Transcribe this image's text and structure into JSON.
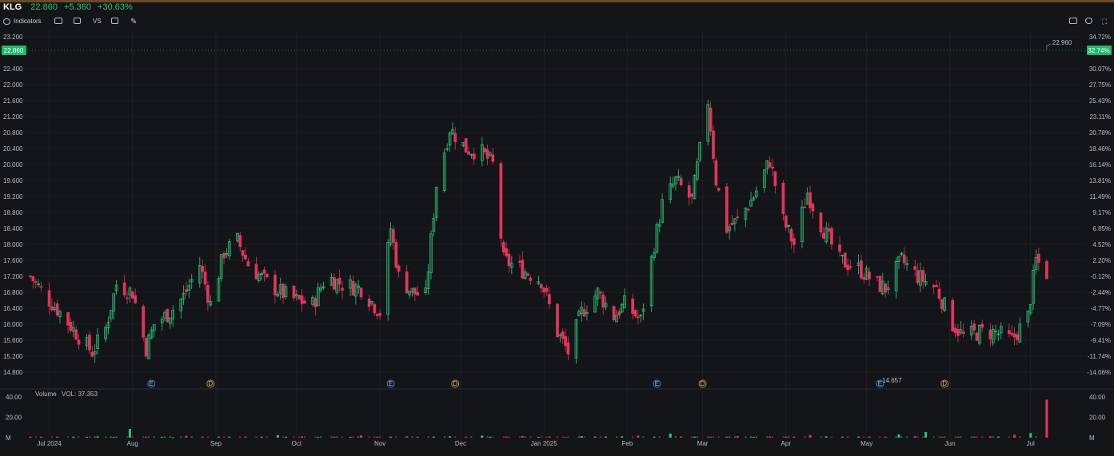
{
  "ticker": {
    "symbol": "KLG",
    "price": "22.860",
    "change": "+5.360",
    "change_pct": "+30.63%"
  },
  "toolbar": {
    "indicators": "Indicators",
    "vs": "VS"
  },
  "colors": {
    "up": "#2fc77a",
    "down": "#e4345b",
    "grid": "#23262d",
    "price_line": "#1fb86a",
    "earnings": "#3e7be0",
    "dividend": "#c88a1e"
  },
  "chart_data": {
    "type": "candlestick",
    "price_axis": [
      "23.200",
      "22.400",
      "22.000",
      "21.600",
      "21.200",
      "20.800",
      "20.400",
      "20.000",
      "19.600",
      "19.200",
      "18.800",
      "18.400",
      "18.000",
      "17.600",
      "17.200",
      "16.800",
      "16.400",
      "16.000",
      "15.600",
      "15.200",
      "14.800"
    ],
    "pct_axis": [
      "34.72%",
      "30.07%",
      "27.75%",
      "25.43%",
      "23.11%",
      "20.78%",
      "18.46%",
      "16.14%",
      "13.81%",
      "11.49%",
      "9.17%",
      "6.85%",
      "4.52%",
      "2.20%",
      "-0.12%",
      "-2.44%",
      "-4.77%",
      "-7.09%",
      "-9.41%",
      "-11.74%",
      "-14.06%"
    ],
    "x_labels": [
      "Jul 2024",
      "Aug",
      "Sep",
      "Oct",
      "Nov",
      "Dec",
      "Jan 2025",
      "Feb",
      "Mar",
      "Apr",
      "May",
      "Jun",
      "Jul"
    ],
    "current_price": "22.860",
    "current_pct": "32.74%",
    "high_label": "22.960",
    "low_label": "14.657",
    "events": [
      {
        "type": "E",
        "label": "E",
        "date": "2024-08-08"
      },
      {
        "type": "D",
        "label": "D",
        "date": "2024-08-30"
      },
      {
        "type": "E",
        "label": "E",
        "date": "2024-11-05"
      },
      {
        "type": "D",
        "label": "D",
        "date": "2024-11-29"
      },
      {
        "type": "E",
        "label": "E",
        "date": "2025-02-12"
      },
      {
        "type": "D",
        "label": "D",
        "date": "2025-03-01"
      },
      {
        "type": "E",
        "label": "E",
        "date": "2025-05-06"
      },
      {
        "type": "D",
        "label": "D",
        "date": "2025-05-30"
      }
    ],
    "price_anchors": [
      [
        "2024-06-24",
        17.2
      ],
      [
        "2024-07-01",
        16.6
      ],
      [
        "2024-07-05",
        16.3
      ],
      [
        "2024-07-12",
        15.7
      ],
      [
        "2024-07-17",
        15.3
      ],
      [
        "2024-07-22",
        15.9
      ],
      [
        "2024-07-26",
        17.0
      ],
      [
        "2024-08-01",
        16.8
      ],
      [
        "2024-08-06",
        15.4
      ],
      [
        "2024-08-09",
        16.0
      ],
      [
        "2024-08-15",
        16.3
      ],
      [
        "2024-08-20",
        16.7
      ],
      [
        "2024-08-26",
        17.5
      ],
      [
        "2024-08-30",
        16.5
      ],
      [
        "2024-09-04",
        17.8
      ],
      [
        "2024-09-09",
        18.1
      ],
      [
        "2024-09-13",
        17.5
      ],
      [
        "2024-09-19",
        17.1
      ],
      [
        "2024-09-25",
        16.8
      ],
      [
        "2024-10-01",
        16.6
      ],
      [
        "2024-10-07",
        16.5
      ],
      [
        "2024-10-12",
        17.2
      ],
      [
        "2024-10-18",
        17.0
      ],
      [
        "2024-10-25",
        16.9
      ],
      [
        "2024-11-01",
        16.3
      ],
      [
        "2024-11-05",
        18.4
      ],
      [
        "2024-11-08",
        17.2
      ],
      [
        "2024-11-13",
        16.8
      ],
      [
        "2024-11-18",
        16.7
      ],
      [
        "2024-11-22",
        19.5
      ],
      [
        "2024-11-27",
        20.9
      ],
      [
        "2024-12-03",
        20.4
      ],
      [
        "2024-12-09",
        20.3
      ],
      [
        "2024-12-13",
        20.0
      ],
      [
        "2024-12-17",
        17.6
      ],
      [
        "2024-12-23",
        17.4
      ],
      [
        "2024-12-31",
        17.1
      ],
      [
        "2025-01-06",
        15.8
      ],
      [
        "2025-01-10",
        15.3
      ],
      [
        "2025-01-15",
        16.3
      ],
      [
        "2025-01-21",
        16.8
      ],
      [
        "2025-01-27",
        16.2
      ],
      [
        "2025-01-31",
        16.5
      ],
      [
        "2025-02-06",
        16.1
      ],
      [
        "2025-02-11",
        18.0
      ],
      [
        "2025-02-14",
        19.0
      ],
      [
        "2025-02-19",
        19.6
      ],
      [
        "2025-02-25",
        19.1
      ],
      [
        "2025-03-03",
        21.6
      ],
      [
        "2025-03-06",
        19.6
      ],
      [
        "2025-03-10",
        18.4
      ],
      [
        "2025-03-14",
        18.6
      ],
      [
        "2025-03-20",
        19.2
      ],
      [
        "2025-03-26",
        20.1
      ],
      [
        "2025-03-31",
        18.6
      ],
      [
        "2025-04-04",
        18.0
      ],
      [
        "2025-04-09",
        19.3
      ],
      [
        "2025-04-14",
        18.5
      ],
      [
        "2025-04-21",
        17.6
      ],
      [
        "2025-04-28",
        17.4
      ],
      [
        "2025-05-05",
        17.0
      ],
      [
        "2025-05-08",
        16.9
      ],
      [
        "2025-05-14",
        17.6
      ],
      [
        "2025-05-20",
        17.2
      ],
      [
        "2025-05-27",
        16.9
      ],
      [
        "2025-06-02",
        16.0
      ],
      [
        "2025-06-06",
        15.7
      ],
      [
        "2025-06-12",
        15.8
      ],
      [
        "2025-06-18",
        15.8
      ],
      [
        "2025-06-24",
        15.6
      ],
      [
        "2025-06-30",
        16.2
      ],
      [
        "2025-07-03",
        17.6
      ],
      [
        "2025-07-08",
        17.2
      ]
    ],
    "volume": {
      "label": "Volume",
      "value_label": "VOL: 37.353",
      "axis": [
        "40.00",
        "20.00",
        "M"
      ],
      "values_m": [
        0.8,
        0.6,
        1.0,
        0.7,
        0.9,
        1.2,
        0.6,
        8.6,
        0.9,
        0.7,
        0.5,
        1.8,
        0.9,
        0.8,
        0.7,
        1.1,
        0.6,
        2.5,
        0.9,
        1.2,
        0.7,
        1.0,
        0.8,
        2.2,
        0.9,
        0.6,
        1.4,
        0.7,
        0.9,
        1.3,
        0.8,
        2.0,
        0.9,
        1.1,
        1.6,
        0.8,
        1.2,
        0.7,
        1.5,
        0.9,
        1.0,
        1.3,
        2.0,
        0.8,
        4.0,
        1.2,
        1.0,
        0.9,
        1.1,
        1.5,
        0.8,
        1.2,
        1.0,
        0.9,
        2.6,
        1.3,
        0.8,
        1.0,
        1.1,
        0.7,
        3.2,
        1.5,
        5.6,
        0.9,
        1.0,
        1.1,
        1.4,
        1.0,
        2.8,
        4.5,
        37.353
      ]
    }
  }
}
